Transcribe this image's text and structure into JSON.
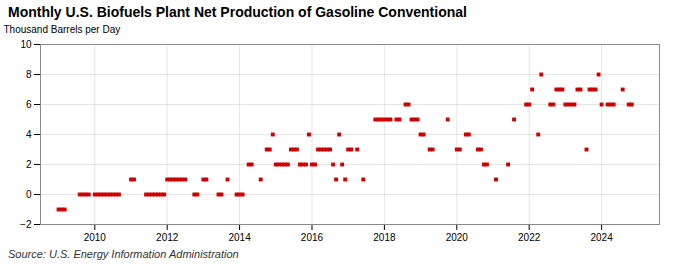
{
  "chart_data": {
    "type": "scatter",
    "title": "Monthly U.S. Biofuels Plant Net Production of Gasoline Conventional",
    "ylabel": "Thousand Barrels per Day",
    "source": "Source: U.S. Energy Information Administration",
    "color": "#cc0000",
    "marker": "square",
    "grid": true,
    "xlim": [
      2008.5,
      2025.6
    ],
    "xticks": [
      2010,
      2012,
      2014,
      2016,
      2018,
      2020,
      2022,
      2024
    ],
    "ylim": [
      -2,
      10
    ],
    "yticks": [
      -2,
      0,
      2,
      4,
      6,
      8,
      10
    ],
    "x": [
      2009.0,
      2009.083,
      2009.167,
      2009.583,
      2009.667,
      2009.75,
      2009.833,
      2010.0,
      2010.083,
      2010.167,
      2010.25,
      2010.333,
      2010.417,
      2010.5,
      2010.583,
      2010.667,
      2011.0,
      2011.083,
      2011.417,
      2011.5,
      2011.583,
      2011.667,
      2011.75,
      2011.833,
      2011.917,
      2012.0,
      2012.083,
      2012.167,
      2012.25,
      2012.333,
      2012.417,
      2012.5,
      2012.75,
      2012.833,
      2013.0,
      2013.083,
      2013.417,
      2013.5,
      2013.667,
      2013.917,
      2014.0,
      2014.083,
      2014.25,
      2014.333,
      2014.583,
      2014.75,
      2014.833,
      2014.917,
      2015.0,
      2015.083,
      2015.167,
      2015.25,
      2015.333,
      2015.417,
      2015.5,
      2015.583,
      2015.667,
      2015.75,
      2015.833,
      2015.917,
      2016.0,
      2016.083,
      2016.167,
      2016.25,
      2016.333,
      2016.417,
      2016.5,
      2016.583,
      2016.667,
      2016.75,
      2016.833,
      2016.917,
      2017.0,
      2017.083,
      2017.25,
      2017.417,
      2017.75,
      2017.833,
      2017.917,
      2018.0,
      2018.083,
      2018.167,
      2018.333,
      2018.417,
      2018.583,
      2018.667,
      2018.75,
      2018.833,
      2018.917,
      2019.0,
      2019.083,
      2019.25,
      2019.333,
      2019.75,
      2020.0,
      2020.083,
      2020.25,
      2020.333,
      2020.583,
      2020.667,
      2020.75,
      2020.833,
      2021.083,
      2021.417,
      2021.583,
      2021.917,
      2022.0,
      2022.083,
      2022.25,
      2022.333,
      2022.583,
      2022.667,
      2022.75,
      2022.833,
      2022.917,
      2023.0,
      2023.083,
      2023.167,
      2023.25,
      2023.333,
      2023.417,
      2023.583,
      2023.667,
      2023.75,
      2023.833,
      2023.917,
      2024.0,
      2024.167,
      2024.25,
      2024.333,
      2024.583,
      2024.75,
      2024.833
    ],
    "values": [
      -1,
      -1,
      -1,
      0,
      0,
      0,
      0,
      0,
      0,
      0,
      0,
      0,
      0,
      0,
      0,
      0,
      1,
      1,
      0,
      0,
      0,
      0,
      0,
      0,
      0,
      1,
      1,
      1,
      1,
      1,
      1,
      1,
      0,
      0,
      1,
      1,
      0,
      0,
      1,
      0,
      0,
      0,
      2,
      2,
      1,
      3,
      3,
      4,
      2,
      2,
      2,
      2,
      2,
      3,
      3,
      3,
      2,
      2,
      2,
      4,
      2,
      2,
      3,
      3,
      3,
      3,
      3,
      2,
      1,
      4,
      2,
      1,
      3,
      3,
      3,
      1,
      5,
      5,
      5,
      5,
      5,
      5,
      5,
      5,
      6,
      6,
      5,
      5,
      5,
      4,
      4,
      3,
      3,
      5,
      3,
      3,
      4,
      4,
      3,
      3,
      2,
      2,
      1,
      2,
      5,
      6,
      6,
      7,
      4,
      8,
      6,
      6,
      7,
      7,
      7,
      6,
      6,
      6,
      6,
      7,
      7,
      3,
      7,
      7,
      7,
      8,
      6,
      6,
      6,
      6,
      7,
      6,
      6
    ]
  }
}
